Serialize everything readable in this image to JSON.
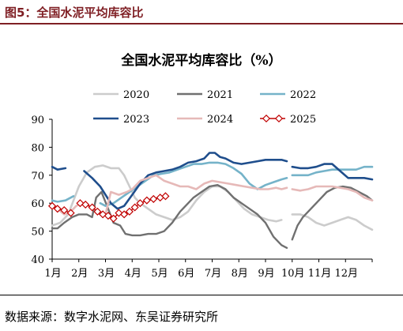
{
  "figure": {
    "label": "图5：全国水泥平均库容比",
    "source": "数据来源：数字水泥网、东吴证券研究所"
  },
  "chart_data": {
    "type": "line",
    "title": "全国水泥平均库容比（%）",
    "xlabel": "",
    "ylabel": "",
    "ylim": [
      40,
      90
    ],
    "yticks": [
      40,
      50,
      60,
      70,
      80,
      90
    ],
    "x_tick_labels": [
      "1月",
      "2月",
      "3月",
      "4月",
      "5月",
      "6月",
      "7月",
      "8月",
      "9月",
      "10月",
      "11月",
      "12月"
    ],
    "x_range": [
      1,
      13
    ],
    "grid": false,
    "legend_position": "top",
    "series": [
      {
        "name": "2020",
        "color": "#cccccc",
        "width": 2.6,
        "marker": "none",
        "points": [
          [
            1.0,
            52.0
          ],
          [
            1.3,
            53.0
          ],
          [
            1.6,
            56.0
          ],
          [
            2.0,
            66.0
          ],
          [
            2.3,
            71.0
          ],
          [
            2.6,
            73.0
          ],
          [
            2.9,
            73.5
          ],
          [
            3.2,
            72.5
          ],
          [
            3.5,
            72.5
          ],
          [
            3.7,
            70.0
          ],
          [
            3.9,
            66.0
          ],
          [
            4.1,
            62.0
          ],
          [
            4.3,
            60.0
          ],
          [
            4.6,
            58.0
          ],
          [
            4.9,
            56.0
          ],
          [
            5.2,
            55.0
          ],
          [
            5.5,
            54.0
          ],
          [
            5.8,
            55.0
          ],
          [
            6.1,
            57.0
          ],
          [
            6.4,
            61.0
          ],
          [
            6.7,
            64.0
          ],
          [
            7.0,
            66.0
          ],
          [
            7.3,
            66.0
          ],
          [
            7.6,
            64.0
          ],
          [
            7.9,
            61.0
          ],
          [
            8.2,
            58.0
          ],
          [
            8.5,
            56.0
          ],
          [
            8.8,
            55.0
          ],
          [
            9.1,
            54.0
          ],
          [
            9.4,
            53.5
          ],
          [
            9.6,
            54.0
          ],
          null,
          [
            10.0,
            56.0
          ],
          [
            10.3,
            56.0
          ],
          [
            10.6,
            55.0
          ],
          [
            10.9,
            53.0
          ],
          [
            11.2,
            52.0
          ],
          [
            11.5,
            53.0
          ],
          [
            11.8,
            54.0
          ],
          [
            12.1,
            55.0
          ],
          [
            12.4,
            54.0
          ],
          [
            12.7,
            52.0
          ],
          [
            13.0,
            50.5
          ]
        ]
      },
      {
        "name": "2021",
        "color": "#707070",
        "width": 2.4,
        "marker": "none",
        "points": [
          [
            1.0,
            51.0
          ],
          [
            1.2,
            51.0
          ],
          [
            1.45,
            53.0
          ],
          [
            1.75,
            55.0
          ],
          [
            2.0,
            56.0
          ],
          [
            2.3,
            56.0
          ],
          [
            2.5,
            55.0
          ],
          [
            2.65,
            62.0
          ],
          [
            2.85,
            64.0
          ],
          [
            3.1,
            58.0
          ],
          [
            3.3,
            53.0
          ],
          [
            3.55,
            52.0
          ],
          [
            3.75,
            49.0
          ],
          [
            4.0,
            48.5
          ],
          [
            4.3,
            48.5
          ],
          [
            4.6,
            49.0
          ],
          [
            4.9,
            49.0
          ],
          [
            5.2,
            50.0
          ],
          [
            5.5,
            53.0
          ],
          [
            5.8,
            57.0
          ],
          [
            6.0,
            59.0
          ],
          [
            6.3,
            62.0
          ],
          [
            6.6,
            64.0
          ],
          [
            6.9,
            66.0
          ],
          [
            7.2,
            66.5
          ],
          [
            7.5,
            65.0
          ],
          [
            7.8,
            62.0
          ],
          [
            8.1,
            60.0
          ],
          [
            8.4,
            58.0
          ],
          [
            8.7,
            56.0
          ],
          [
            9.0,
            53.0
          ],
          [
            9.3,
            48.0
          ],
          [
            9.6,
            45.0
          ],
          [
            9.8,
            44.0
          ],
          null,
          [
            10.0,
            47.0
          ],
          [
            10.2,
            52.0
          ],
          [
            10.4,
            55.0
          ],
          [
            10.7,
            58.0
          ],
          [
            11.0,
            61.0
          ],
          [
            11.3,
            64.0
          ],
          [
            11.6,
            65.5
          ],
          [
            11.9,
            66.0
          ],
          [
            12.2,
            65.5
          ],
          [
            12.5,
            64.0
          ],
          [
            12.8,
            62.5
          ],
          [
            13.0,
            61.0
          ]
        ]
      },
      {
        "name": "2022",
        "color": "#75b3c9",
        "width": 2.6,
        "marker": "none",
        "points": [
          [
            1.0,
            61.0
          ],
          [
            1.2,
            60.5
          ],
          [
            1.5,
            61.0
          ],
          [
            1.8,
            62.5
          ],
          null,
          [
            2.8,
            60.0
          ],
          [
            3.0,
            59.0
          ],
          [
            3.3,
            60.0
          ],
          [
            3.6,
            62.0
          ],
          [
            3.9,
            64.0
          ],
          [
            4.2,
            66.0
          ],
          [
            4.5,
            68.0
          ],
          [
            4.8,
            70.0
          ],
          [
            5.1,
            70.5
          ],
          [
            5.4,
            71.0
          ],
          [
            5.7,
            72.0
          ],
          [
            6.0,
            73.0
          ],
          [
            6.3,
            74.0
          ],
          [
            6.6,
            74.0
          ],
          [
            6.9,
            74.5
          ],
          [
            7.2,
            74.5
          ],
          [
            7.5,
            74.0
          ],
          [
            7.8,
            72.5
          ],
          [
            8.1,
            70.5
          ],
          [
            8.4,
            67.0
          ],
          [
            8.7,
            65.0
          ],
          [
            9.0,
            66.5
          ],
          [
            9.3,
            67.5
          ],
          [
            9.6,
            68.5
          ],
          [
            9.8,
            69.0
          ],
          null,
          [
            10.0,
            70.0
          ],
          [
            10.3,
            70.0
          ],
          [
            10.6,
            70.0
          ],
          [
            10.9,
            71.0
          ],
          [
            11.2,
            71.5
          ],
          [
            11.5,
            72.0
          ],
          [
            11.8,
            72.0
          ],
          [
            12.1,
            72.0
          ],
          [
            12.4,
            72.0
          ],
          [
            12.7,
            73.0
          ],
          [
            13.0,
            73.0
          ]
        ]
      },
      {
        "name": "2023",
        "color": "#1f4e8c",
        "width": 2.6,
        "marker": "none",
        "points": [
          [
            1.0,
            73.0
          ],
          [
            1.2,
            72.0
          ],
          [
            1.5,
            72.5
          ],
          null,
          [
            2.2,
            71.5
          ],
          [
            2.5,
            69.0
          ],
          [
            2.8,
            66.0
          ],
          [
            3.0,
            63.0
          ],
          [
            3.2,
            60.0
          ],
          [
            3.45,
            58.0
          ],
          [
            3.7,
            59.0
          ],
          [
            4.0,
            63.0
          ],
          [
            4.3,
            67.0
          ],
          [
            4.6,
            70.0
          ],
          [
            4.9,
            71.0
          ],
          [
            5.2,
            71.5
          ],
          [
            5.5,
            72.0
          ],
          [
            5.8,
            73.0
          ],
          [
            6.1,
            74.5
          ],
          [
            6.4,
            75.0
          ],
          [
            6.7,
            76.0
          ],
          [
            6.9,
            78.0
          ],
          [
            7.1,
            78.0
          ],
          [
            7.3,
            76.5
          ],
          [
            7.5,
            76.0
          ],
          [
            7.8,
            74.5
          ],
          [
            8.1,
            74.0
          ],
          [
            8.4,
            74.5
          ],
          [
            8.7,
            75.0
          ],
          [
            9.0,
            75.5
          ],
          [
            9.3,
            75.5
          ],
          [
            9.6,
            75.5
          ],
          [
            9.8,
            75.0
          ],
          null,
          [
            10.0,
            73.0
          ],
          [
            10.3,
            72.5
          ],
          [
            10.6,
            72.5
          ],
          [
            10.9,
            73.0
          ],
          [
            11.2,
            74.0
          ],
          [
            11.5,
            74.0
          ],
          [
            11.8,
            71.5
          ],
          [
            12.1,
            69.0
          ],
          [
            12.4,
            69.0
          ],
          [
            12.7,
            69.0
          ],
          [
            13.0,
            68.5
          ]
        ]
      },
      {
        "name": "2024",
        "color": "#e6b9b8",
        "width": 2.6,
        "marker": "none",
        "points": [
          [
            1.0,
            60.0
          ],
          [
            1.2,
            58.0
          ],
          [
            1.45,
            56.0
          ],
          [
            1.7,
            57.0
          ],
          [
            1.9,
            59.0
          ],
          [
            2.1,
            60.0
          ],
          [
            2.4,
            59.0
          ],
          [
            2.7,
            57.0
          ],
          [
            3.0,
            56.0
          ],
          [
            3.2,
            64.0
          ],
          [
            3.5,
            63.0
          ],
          [
            3.8,
            64.0
          ],
          [
            4.0,
            65.0
          ],
          [
            4.3,
            68.0
          ],
          [
            4.6,
            69.0
          ],
          [
            4.9,
            70.0
          ],
          [
            5.2,
            68.0
          ],
          [
            5.5,
            67.0
          ],
          [
            5.8,
            66.0
          ],
          [
            6.1,
            66.0
          ],
          [
            6.4,
            65.0
          ],
          [
            6.7,
            67.0
          ],
          [
            7.0,
            68.0
          ],
          [
            7.3,
            67.5
          ],
          [
            7.6,
            67.0
          ],
          [
            7.9,
            66.5
          ],
          [
            8.2,
            66.0
          ],
          [
            8.5,
            65.5
          ],
          [
            8.8,
            65.0
          ],
          [
            9.1,
            65.0
          ],
          [
            9.4,
            65.5
          ],
          [
            9.6,
            65.0
          ],
          [
            9.8,
            65.5
          ],
          null,
          [
            10.0,
            65.0
          ],
          [
            10.3,
            64.5
          ],
          [
            10.6,
            65.0
          ],
          [
            10.9,
            66.0
          ],
          [
            11.2,
            66.0
          ],
          [
            11.5,
            66.0
          ],
          [
            11.8,
            65.5
          ],
          [
            12.1,
            65.0
          ],
          [
            12.4,
            64.0
          ],
          [
            12.7,
            62.0
          ],
          [
            13.0,
            61.0
          ]
        ]
      },
      {
        "name": "2025",
        "color": "#c00000",
        "width": 1.4,
        "marker": "diamond",
        "points": [
          [
            1.0,
            59.0
          ],
          [
            1.2,
            58.0
          ],
          [
            1.45,
            57.5
          ],
          [
            1.7,
            56.5
          ],
          null,
          [
            2.05,
            60.0
          ],
          [
            2.25,
            59.5
          ],
          [
            2.5,
            58.5
          ],
          [
            2.7,
            57.0
          ],
          [
            2.9,
            56.0
          ],
          [
            3.1,
            55.5
          ],
          [
            3.3,
            54.5
          ],
          [
            3.5,
            56.5
          ],
          [
            3.7,
            56.0
          ],
          [
            3.9,
            57.0
          ],
          [
            4.1,
            58.5
          ],
          [
            4.3,
            60.0
          ],
          [
            4.55,
            61.0
          ],
          [
            4.8,
            61.5
          ],
          [
            5.05,
            62.0
          ],
          [
            5.25,
            62.5
          ]
        ]
      }
    ]
  }
}
